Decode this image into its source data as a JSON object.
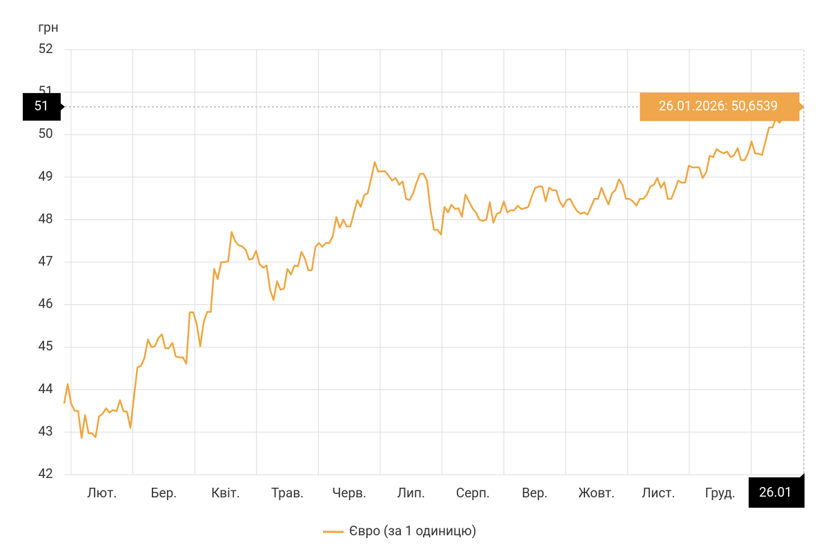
{
  "chart_data": {
    "type": "line",
    "y_unit": "грн",
    "x_labels": [
      "Лют.",
      "Бер.",
      "Квіт.",
      "Трав.",
      "Черв.",
      "Лип.",
      "Серп.",
      "Вер.",
      "Жовт.",
      "Лист.",
      "Груд."
    ],
    "end_label": "26.01",
    "ylim": [
      42,
      52
    ],
    "yticks": [
      42,
      43,
      44,
      45,
      46,
      47,
      48,
      49,
      50,
      51,
      52
    ],
    "grid": true,
    "crosshair_label": "51",
    "tooltip": {
      "label": "26.01.2026: 50,6539",
      "value": 50.6539
    },
    "series": [
      {
        "name": "Євро (за 1 одиницю)",
        "color": "#eea540",
        "values": [
          43.67,
          44.13,
          43.67,
          43.5,
          43.5,
          42.86,
          43.4,
          42.97,
          42.97,
          42.88,
          43.37,
          43.43,
          43.56,
          43.46,
          43.52,
          43.49,
          43.75,
          43.49,
          43.48,
          43.1,
          43.83,
          44.52,
          44.56,
          44.74,
          45.18,
          45.0,
          45.02,
          45.21,
          45.3,
          44.97,
          44.97,
          45.1,
          44.78,
          44.76,
          44.76,
          44.61,
          45.82,
          45.82,
          45.54,
          45.02,
          45.59,
          45.83,
          45.83,
          46.84,
          46.6,
          47.0,
          47.0,
          47.02,
          47.71,
          47.49,
          47.4,
          47.37,
          47.29,
          47.06,
          47.08,
          47.27,
          46.95,
          46.87,
          46.92,
          46.35,
          46.11,
          46.55,
          46.35,
          46.38,
          46.84,
          46.71,
          46.92,
          46.9,
          47.24,
          47.08,
          46.81,
          46.81,
          47.36,
          47.45,
          47.36,
          47.45,
          47.45,
          47.62,
          48.06,
          47.81,
          48.0,
          47.84,
          47.84,
          48.14,
          48.46,
          48.3,
          48.58,
          48.62,
          48.98,
          49.35,
          49.13,
          49.14,
          49.14,
          49.03,
          48.92,
          48.98,
          48.82,
          48.9,
          48.49,
          48.46,
          48.62,
          48.87,
          49.08,
          49.08,
          48.92,
          48.22,
          47.76,
          47.76,
          47.65,
          48.3,
          48.17,
          48.35,
          48.25,
          48.27,
          48.07,
          48.59,
          48.43,
          48.27,
          48.17,
          48.0,
          47.97,
          48.0,
          48.41,
          47.93,
          48.14,
          48.17,
          48.43,
          48.17,
          48.22,
          48.22,
          48.33,
          48.25,
          48.27,
          48.3,
          48.54,
          48.75,
          48.78,
          48.78,
          48.43,
          48.75,
          48.69,
          48.69,
          48.43,
          48.3,
          48.46,
          48.49,
          48.33,
          48.2,
          48.14,
          48.17,
          48.12,
          48.3,
          48.49,
          48.49,
          48.75,
          48.54,
          48.36,
          48.62,
          48.7,
          48.95,
          48.82,
          48.49,
          48.49,
          48.43,
          48.33,
          48.49,
          48.49,
          48.59,
          48.78,
          48.82,
          48.98,
          48.75,
          48.88,
          48.49,
          48.49,
          48.7,
          48.92,
          48.87,
          48.87,
          49.27,
          49.23,
          49.23,
          49.23,
          48.98,
          49.11,
          49.5,
          49.47,
          49.66,
          49.6,
          49.56,
          49.6,
          49.47,
          49.52,
          49.68,
          49.4,
          49.4,
          49.56,
          49.84,
          49.56,
          49.55,
          49.52,
          49.84,
          50.17,
          50.17,
          50.38,
          50.28,
          50.44,
          50.38,
          50.44,
          50.54,
          50.57,
          50.6539
        ]
      }
    ]
  }
}
